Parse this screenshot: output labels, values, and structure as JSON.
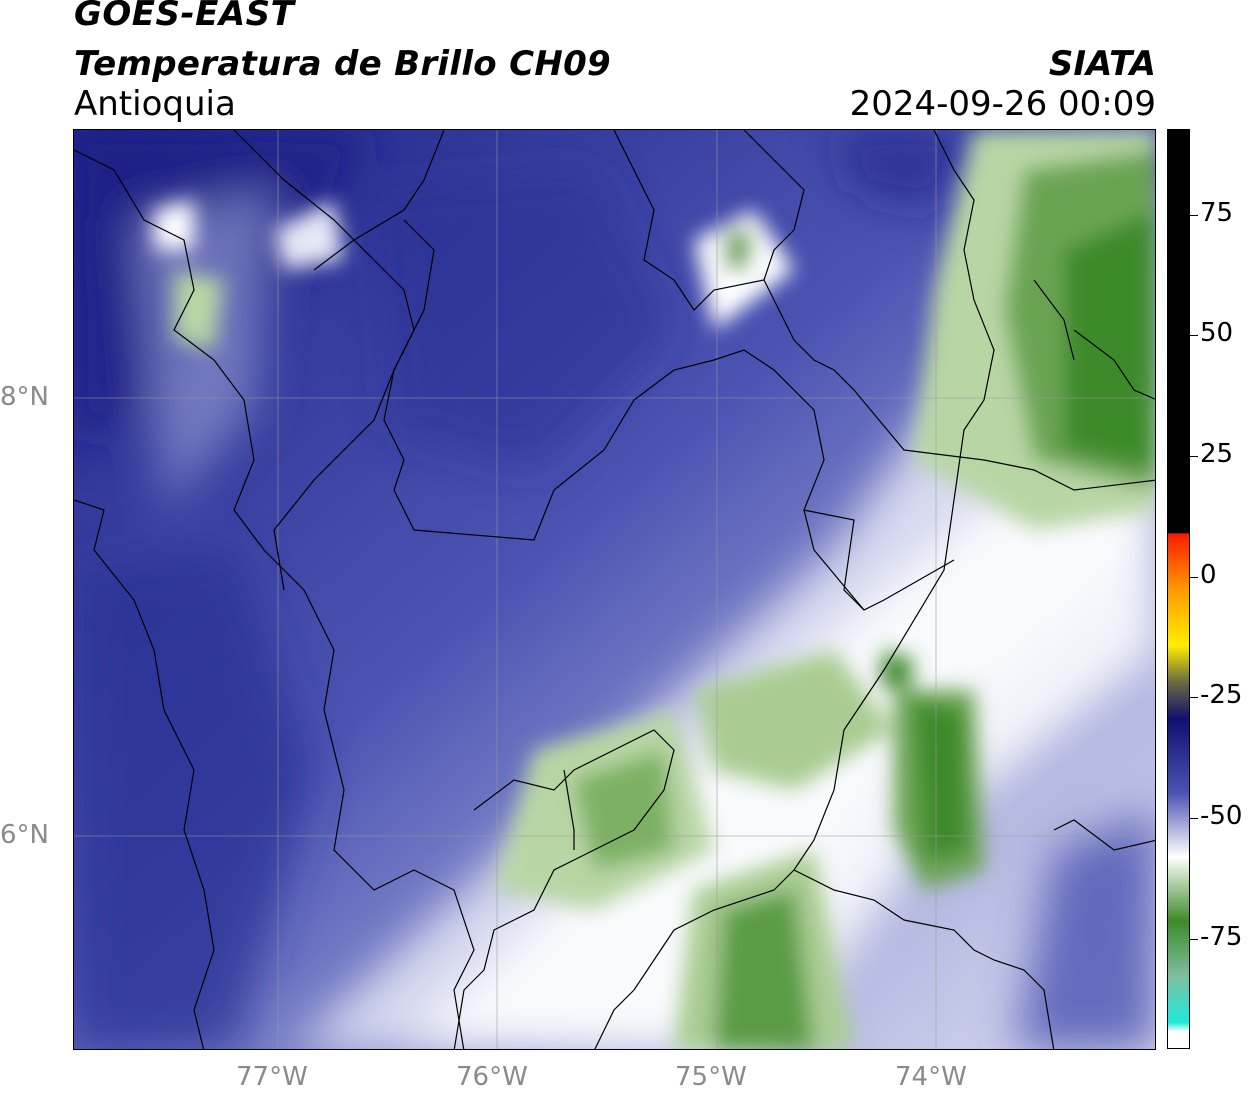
{
  "header": {
    "satellite": "GOES-EAST",
    "product": "Temperatura de Brillo CH09",
    "region": "Antioquia",
    "organization": "SIATA",
    "datetime": "2024-09-26 00:09"
  },
  "map": {
    "lat_labels": [
      "8°N",
      "6°N"
    ],
    "lon_labels": [
      "77°W",
      "76°W",
      "75°W",
      "74°W"
    ],
    "colors": {
      "deep_blue": "#1a1f85",
      "mid_blue": "#4a52b2",
      "light_lavender": "#b9bde3",
      "white": "#ffffff",
      "light_green": "#b8d6a4",
      "mid_green": "#6aa452",
      "dark_green": "#3e8a2a",
      "gridline": "#9a9a9a",
      "border": "#000000"
    }
  },
  "colorbar": {
    "ticks": [
      "75",
      "50",
      "25",
      "0",
      "-25",
      "-50",
      "-75"
    ],
    "colors": {
      "black": "#000000",
      "red": "#ff1a00",
      "orange": "#ff9a00",
      "yellow": "#ffee00",
      "navy": "#101070",
      "blue": "#4a52b2",
      "white": "#ffffff",
      "green": "#3e8a2a",
      "cyan": "#1ee8d8"
    }
  }
}
